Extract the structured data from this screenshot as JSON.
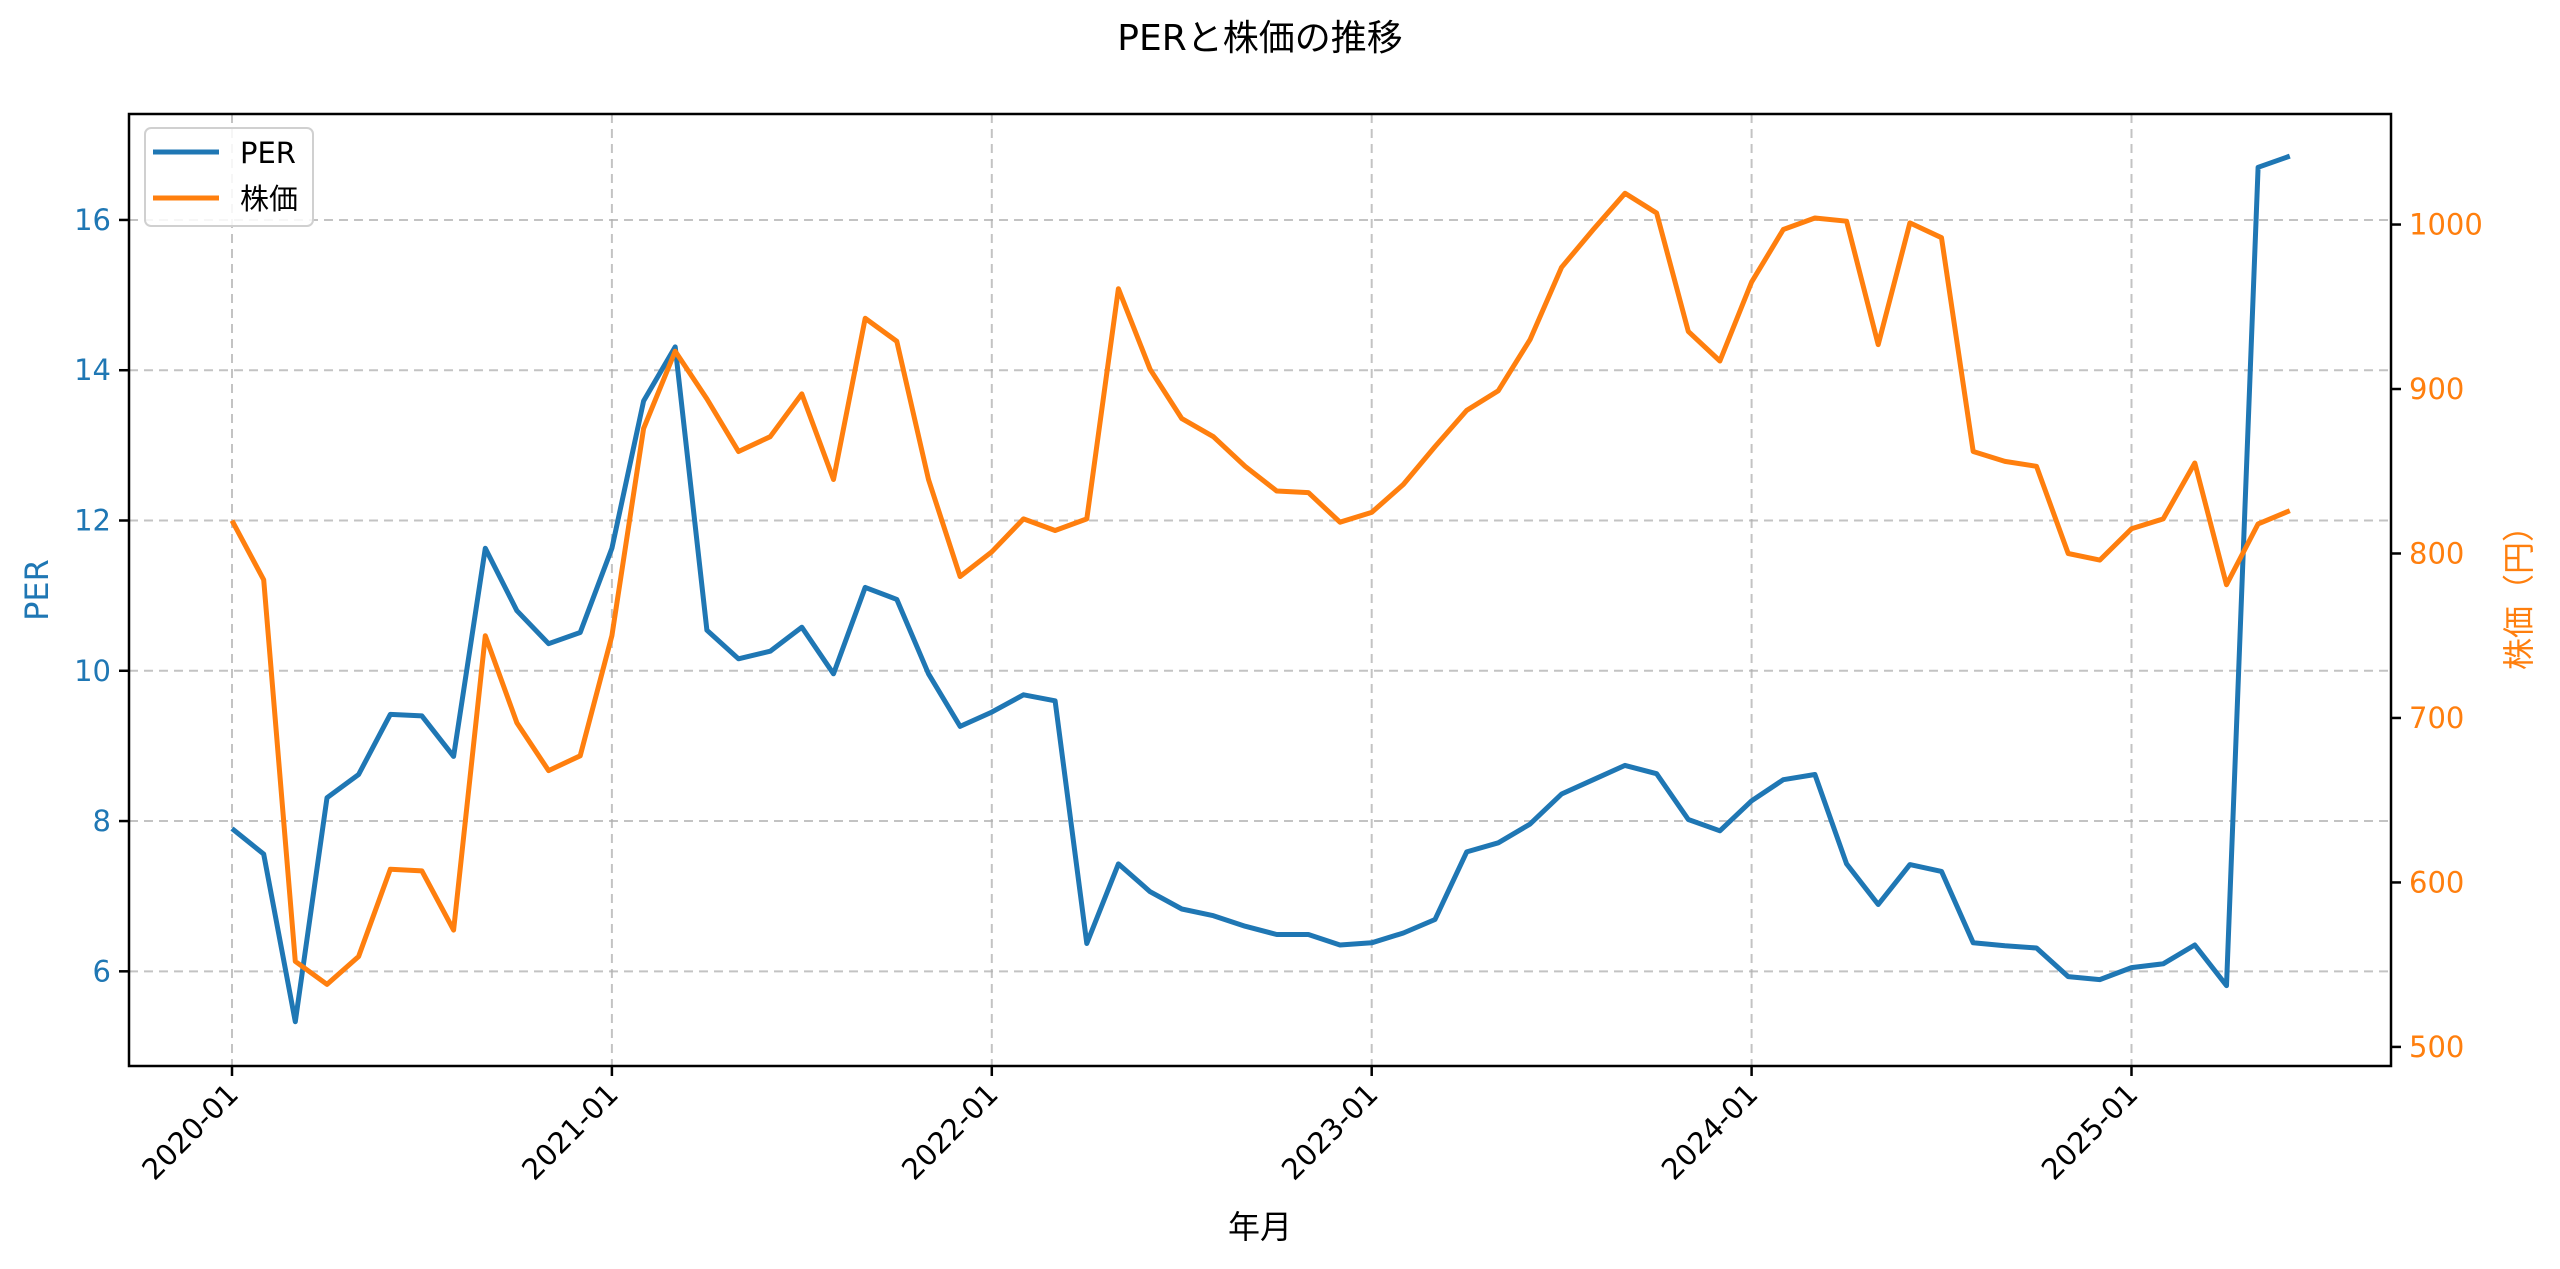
{
  "chart_data": {
    "type": "line",
    "title": "PERと株価の推移",
    "xlabel": "年月",
    "ylabel_left": "PER",
    "ylabel_right": "株価（円）",
    "x_tick_labels": [
      "2020-01",
      "2021-01",
      "2022-01",
      "2023-01",
      "2024-01",
      "2025-01"
    ],
    "y_left_ticks": [
      6,
      8,
      10,
      12,
      14,
      16
    ],
    "y_right_ticks": [
      500,
      600,
      700,
      800,
      900,
      1000
    ],
    "y_left_range": [
      4.74,
      17.41
    ],
    "y_right_range": [
      488.4,
      1067.2
    ],
    "grid": true,
    "legend_position": "upper left",
    "legend": [
      "PER",
      "株価"
    ],
    "colors": {
      "PER": "#1f77b4",
      "株価": "#ff7f0e"
    },
    "x": [
      "2020-01",
      "2020-02",
      "2020-03",
      "2020-04",
      "2020-05",
      "2020-06",
      "2020-07",
      "2020-08",
      "2020-09",
      "2020-10",
      "2020-11",
      "2020-12",
      "2021-01",
      "2021-02",
      "2021-03",
      "2021-04",
      "2021-05",
      "2021-06",
      "2021-07",
      "2021-08",
      "2021-09",
      "2021-10",
      "2021-11",
      "2021-12",
      "2022-01",
      "2022-02",
      "2022-03",
      "2022-04",
      "2022-05",
      "2022-06",
      "2022-07",
      "2022-08",
      "2022-09",
      "2022-10",
      "2022-11",
      "2022-12",
      "2023-01",
      "2023-02",
      "2023-03",
      "2023-04",
      "2023-05",
      "2023-06",
      "2023-07",
      "2023-08",
      "2023-09",
      "2023-10",
      "2023-11",
      "2023-12",
      "2024-01",
      "2024-02",
      "2024-03",
      "2024-04",
      "2024-05",
      "2024-06",
      "2024-07",
      "2024-08",
      "2024-09",
      "2024-10",
      "2024-11",
      "2024-12",
      "2025-01",
      "2025-02",
      "2025-03",
      "2025-04",
      "2025-05",
      "2025-06"
    ],
    "series": [
      {
        "name": "PER",
        "axis": "left",
        "values": [
          7.9,
          7.56,
          5.33,
          8.31,
          8.62,
          9.42,
          9.4,
          8.86,
          11.63,
          10.8,
          10.36,
          10.51,
          11.63,
          13.59,
          14.31,
          10.54,
          10.16,
          10.26,
          10.58,
          9.96,
          11.11,
          10.95,
          9.96,
          9.26,
          9.45,
          9.68,
          9.6,
          6.37,
          7.43,
          7.06,
          6.83,
          6.74,
          6.6,
          6.49,
          6.49,
          6.35,
          6.38,
          6.51,
          6.69,
          7.59,
          7.71,
          7.96,
          8.36,
          8.55,
          8.74,
          8.63,
          8.02,
          7.87,
          8.27,
          8.55,
          8.62,
          7.43,
          6.89,
          7.42,
          7.33,
          6.38,
          6.34,
          6.31,
          5.93,
          5.89,
          6.05,
          6.1,
          6.35,
          5.81,
          16.7,
          16.85
        ]
      },
      {
        "name": "株価",
        "axis": "right",
        "values": [
          820,
          784,
          552,
          538,
          555,
          608,
          607,
          571,
          750,
          697,
          668,
          677,
          750,
          876,
          923,
          894,
          862,
          871,
          897,
          845,
          943,
          929,
          845,
          786,
          801,
          821,
          814,
          821,
          961,
          912,
          882,
          871,
          853,
          838,
          837,
          819,
          825,
          842,
          865,
          887,
          899,
          930,
          974,
          997,
          1019,
          1007,
          935,
          917,
          965,
          997,
          1004,
          1002,
          927,
          1001,
          992,
          862,
          856,
          853,
          800,
          796,
          815,
          821,
          855,
          781,
          818,
          826
        ]
      }
    ]
  }
}
